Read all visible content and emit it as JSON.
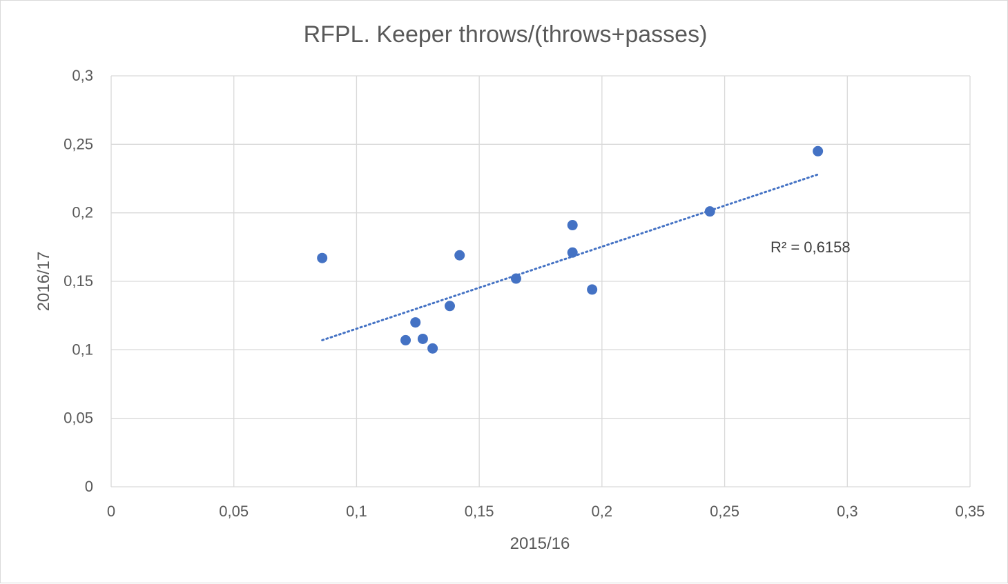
{
  "chart_data": {
    "type": "scatter",
    "title": "RFPL. Keeper throws/(throws+passes)",
    "xlabel": "2015/16",
    "ylabel": "2016/17",
    "xlim": [
      0,
      0.35
    ],
    "ylim": [
      0,
      0.3
    ],
    "x_ticks": [
      "0",
      "0,05",
      "0,1",
      "0,15",
      "0,2",
      "0,25",
      "0,3",
      "0,35"
    ],
    "y_ticks": [
      "0",
      "0,05",
      "0,1",
      "0,15",
      "0,2",
      "0,25",
      "0,3"
    ],
    "grid": true,
    "series": [
      {
        "points": [
          {
            "x": 0.086,
            "y": 0.167
          },
          {
            "x": 0.12,
            "y": 0.107
          },
          {
            "x": 0.124,
            "y": 0.12
          },
          {
            "x": 0.127,
            "y": 0.108
          },
          {
            "x": 0.131,
            "y": 0.101
          },
          {
            "x": 0.138,
            "y": 0.132
          },
          {
            "x": 0.142,
            "y": 0.169
          },
          {
            "x": 0.165,
            "y": 0.152
          },
          {
            "x": 0.188,
            "y": 0.191
          },
          {
            "x": 0.188,
            "y": 0.171
          },
          {
            "x": 0.196,
            "y": 0.144
          },
          {
            "x": 0.244,
            "y": 0.201
          },
          {
            "x": 0.288,
            "y": 0.245
          }
        ]
      }
    ],
    "trendline": {
      "type": "linear",
      "style": "dotted",
      "from": {
        "x": 0.086,
        "y": 0.107
      },
      "to": {
        "x": 0.288,
        "y": 0.228
      },
      "r2_label": "R² = 0,6158"
    },
    "colors": {
      "marker": "#4472c4",
      "trendline": "#4472c4",
      "grid": "#d9d9d9",
      "text": "#595959"
    }
  }
}
